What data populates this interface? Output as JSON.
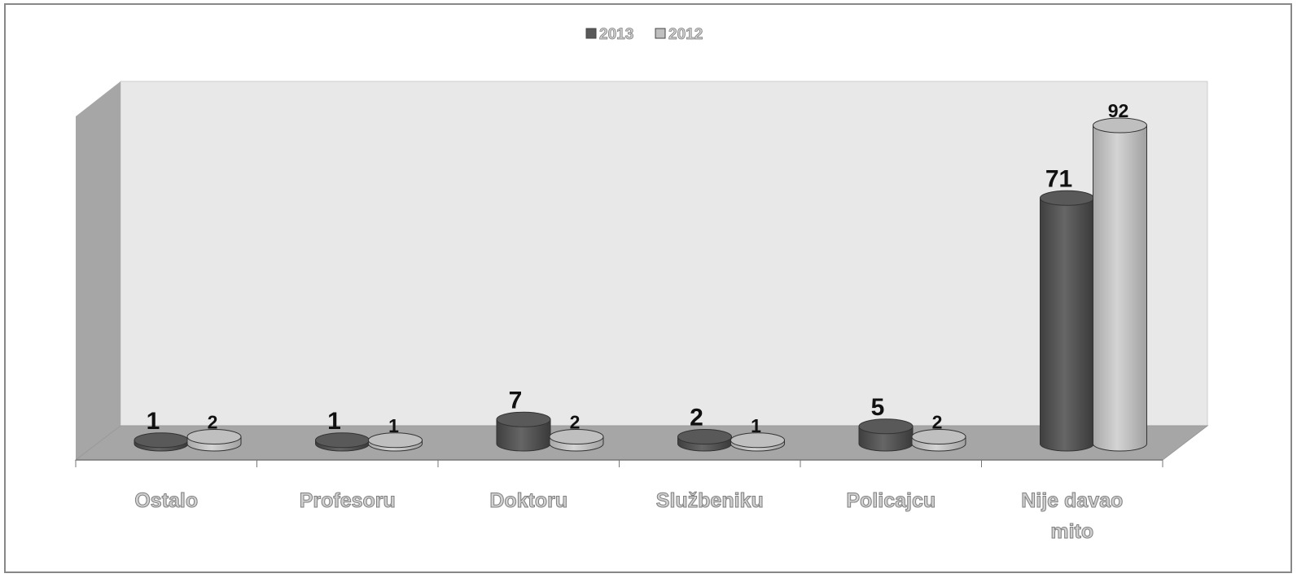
{
  "chart_data": {
    "type": "bar3d",
    "categories": [
      "Ostalo",
      "Profesoru",
      "Doktoru",
      "Službeniku",
      "Policajcu",
      "Nije davao mito"
    ],
    "series": [
      {
        "name": "2013",
        "color": "#595959",
        "values": [
          1,
          1,
          7,
          2,
          5,
          71
        ]
      },
      {
        "name": "2012",
        "color": "#bfbfbf",
        "values": [
          2,
          1,
          2,
          1,
          2,
          92
        ]
      }
    ],
    "legend": "top"
  }
}
